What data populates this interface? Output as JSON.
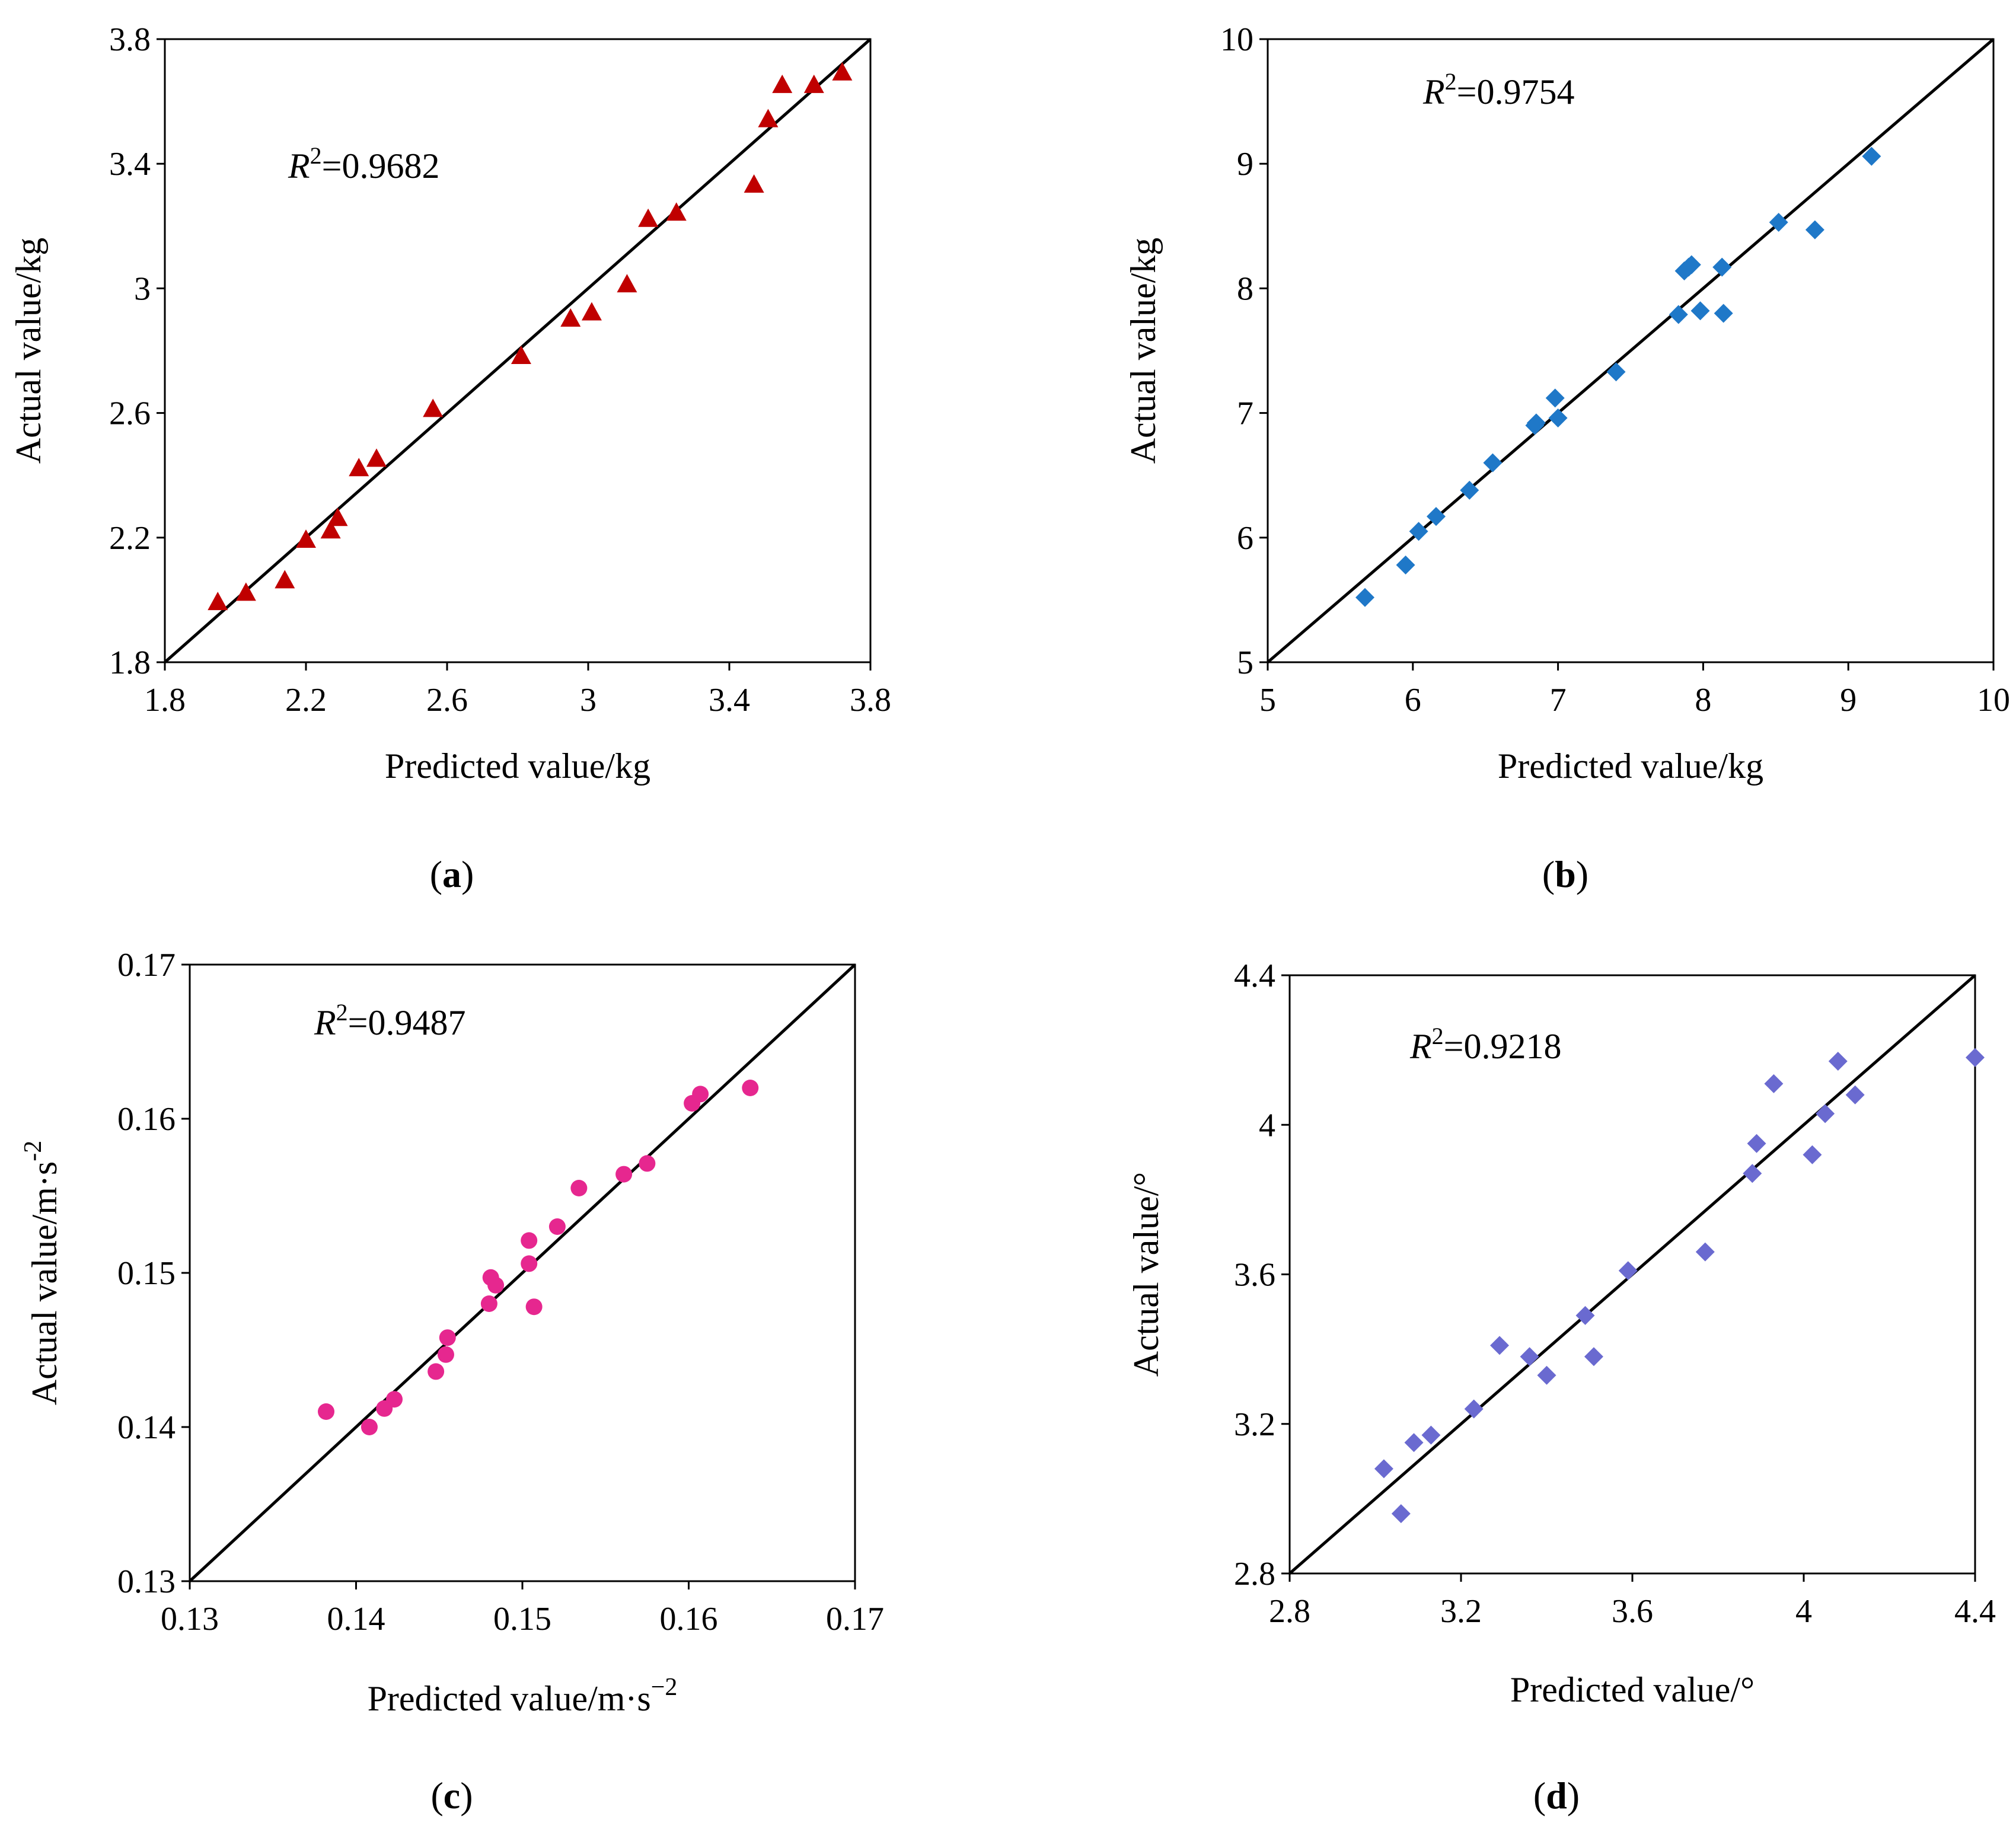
{
  "chart_data": [
    {
      "type": "scatter",
      "panel_label": "a",
      "xlabel": "Predicted value/kg",
      "ylabel": "Actual value/kg",
      "r2_text": "=0.9682",
      "xlim": [
        1.8,
        3.8
      ],
      "ylim": [
        1.8,
        3.8
      ],
      "xticks": [
        1.8,
        2.2,
        2.6,
        3,
        3.4,
        3.8
      ],
      "yticks": [
        1.8,
        2.2,
        2.6,
        3,
        3.4,
        3.8
      ],
      "xtick_labels": [
        "1.8",
        "2.2",
        "2.6",
        "3",
        "3.4",
        "3.8"
      ],
      "ytick_labels": [
        "1.8",
        "2.2",
        "2.6",
        "3",
        "3.4",
        "3.8"
      ],
      "marker": "triangle",
      "color": "#c00000",
      "points": [
        [
          1.95,
          1.99
        ],
        [
          2.03,
          2.02
        ],
        [
          2.14,
          2.06
        ],
        [
          2.2,
          2.19
        ],
        [
          2.27,
          2.22
        ],
        [
          2.29,
          2.26
        ],
        [
          2.35,
          2.42
        ],
        [
          2.4,
          2.45
        ],
        [
          2.56,
          2.61
        ],
        [
          2.81,
          2.78
        ],
        [
          2.95,
          2.9
        ],
        [
          3.01,
          2.92
        ],
        [
          3.11,
          3.01
        ],
        [
          3.17,
          3.22
        ],
        [
          3.25,
          3.24
        ],
        [
          3.47,
          3.33
        ],
        [
          3.51,
          3.54
        ],
        [
          3.55,
          3.65
        ],
        [
          3.64,
          3.65
        ],
        [
          3.72,
          3.69
        ]
      ]
    },
    {
      "type": "scatter",
      "panel_label": "b",
      "xlabel": "Predicted value/kg",
      "ylabel": "Actual value/kg",
      "r2_text": "=0.9754",
      "xlim": [
        5,
        10
      ],
      "ylim": [
        5,
        10
      ],
      "xticks": [
        5,
        6,
        7,
        8,
        9,
        10
      ],
      "yticks": [
        5,
        6,
        7,
        8,
        9,
        10
      ],
      "xtick_labels": [
        "5",
        "6",
        "7",
        "8",
        "9",
        "10"
      ],
      "ytick_labels": [
        "5",
        "6",
        "7",
        "8",
        "9",
        "10"
      ],
      "marker": "diamond",
      "color": "#1f78c8",
      "points": [
        [
          5.67,
          5.52
        ],
        [
          5.95,
          5.78
        ],
        [
          6.04,
          6.05
        ],
        [
          6.16,
          6.17
        ],
        [
          6.39,
          6.38
        ],
        [
          6.55,
          6.6
        ],
        [
          6.84,
          6.9
        ],
        [
          6.85,
          6.92
        ],
        [
          6.98,
          7.12
        ],
        [
          7.0,
          6.96
        ],
        [
          7.4,
          7.33
        ],
        [
          7.83,
          7.79
        ],
        [
          7.87,
          8.14
        ],
        [
          7.9,
          8.17
        ],
        [
          7.92,
          8.19
        ],
        [
          7.98,
          7.82
        ],
        [
          8.13,
          8.17
        ],
        [
          8.14,
          7.8
        ],
        [
          8.52,
          8.53
        ],
        [
          8.77,
          8.47
        ],
        [
          9.16,
          9.06
        ]
      ]
    },
    {
      "type": "scatter",
      "panel_label": "c",
      "xlabel": "Predicted value/m·s",
      "xlabel_sup": "−2",
      "ylabel": "Actual value/m·s",
      "ylabel_sup": "-2",
      "r2_text": "=0.9487",
      "xlim": [
        0.13,
        0.17
      ],
      "ylim": [
        0.13,
        0.17
      ],
      "xticks": [
        0.13,
        0.14,
        0.15,
        0.16,
        0.17
      ],
      "yticks": [
        0.13,
        0.14,
        0.15,
        0.16,
        0.17
      ],
      "xtick_labels": [
        "0.13",
        "0.14",
        "0.15",
        "0.16",
        "0.17"
      ],
      "ytick_labels": [
        "0.13",
        "0.14",
        "0.15",
        "0.16",
        "0.17"
      ],
      "marker": "circle",
      "color": "#e6278f",
      "points": [
        [
          0.1382,
          0.141
        ],
        [
          0.1408,
          0.14
        ],
        [
          0.1417,
          0.1412
        ],
        [
          0.1423,
          0.1418
        ],
        [
          0.1448,
          0.1436
        ],
        [
          0.1454,
          0.1447
        ],
        [
          0.1455,
          0.1458
        ],
        [
          0.148,
          0.148
        ],
        [
          0.1481,
          0.1497
        ],
        [
          0.1484,
          0.1492
        ],
        [
          0.1504,
          0.1521
        ],
        [
          0.1504,
          0.1506
        ],
        [
          0.1507,
          0.1478
        ],
        [
          0.1521,
          0.153
        ],
        [
          0.1534,
          0.1555
        ],
        [
          0.1561,
          0.1564
        ],
        [
          0.1575,
          0.1571
        ],
        [
          0.1602,
          0.161
        ],
        [
          0.1607,
          0.1616
        ],
        [
          0.1637,
          0.162
        ]
      ]
    },
    {
      "type": "scatter",
      "panel_label": "d",
      "xlabel": "Predicted value/°",
      "ylabel": "Actual value/°",
      "r2_text": "=0.9218",
      "xlim": [
        2.8,
        4.4
      ],
      "ylim": [
        2.8,
        4.4
      ],
      "xticks": [
        2.8,
        3.2,
        3.6,
        4,
        4.4
      ],
      "yticks": [
        2.8,
        3.2,
        3.6,
        4,
        4.4
      ],
      "xtick_labels": [
        "2.8",
        "3.2",
        "3.6",
        "4",
        "4.4"
      ],
      "ytick_labels": [
        "2.8",
        "3.2",
        "3.6",
        "4",
        "4.4"
      ],
      "marker": "diamond",
      "color": "#6a6ad0",
      "points": [
        [
          3.02,
          3.08
        ],
        [
          3.06,
          2.96
        ],
        [
          3.09,
          3.15
        ],
        [
          3.13,
          3.17
        ],
        [
          3.23,
          3.24
        ],
        [
          3.29,
          3.41
        ],
        [
          3.36,
          3.38
        ],
        [
          3.4,
          3.33
        ],
        [
          3.49,
          3.49
        ],
        [
          3.51,
          3.38
        ],
        [
          3.59,
          3.61
        ],
        [
          3.77,
          3.66
        ],
        [
          3.88,
          3.87
        ],
        [
          3.89,
          3.95
        ],
        [
          3.93,
          4.11
        ],
        [
          4.02,
          3.92
        ],
        [
          4.05,
          4.03
        ],
        [
          4.08,
          4.17
        ],
        [
          4.12,
          4.08
        ],
        [
          4.4,
          4.18
        ]
      ]
    }
  ]
}
